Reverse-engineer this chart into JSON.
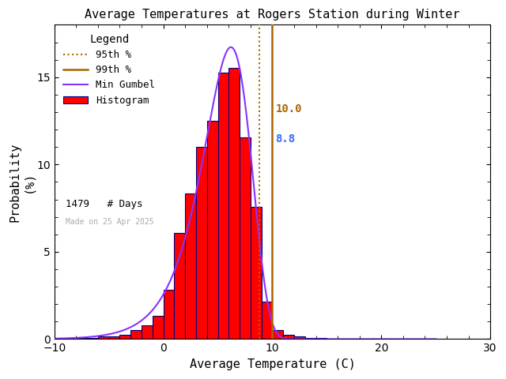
{
  "title": "Average Temperatures at Rogers Station during Winter",
  "xlabel": "Average Temperature (C)",
  "ylabel1": "Probability",
  "ylabel2": "(%)",
  "xlim": [
    -10,
    30
  ],
  "ylim": [
    0,
    18
  ],
  "xticks": [
    -10,
    0,
    10,
    20,
    30
  ],
  "yticks": [
    0,
    5,
    10,
    15
  ],
  "percentile_95": 8.8,
  "percentile_99": 10.0,
  "n_days": 1479,
  "made_on": "Made on 25 Apr 2025",
  "hist_color": "#ff0000",
  "hist_edge_color": "#000080",
  "gumbel_color": "#8833ff",
  "p95_color": "#aa6600",
  "p99_color": "#aa6600",
  "p95_label_color": "#3366ff",
  "p99_label_color": "#aa6600",
  "p95_label": "95th %",
  "p99_label": "99th %",
  "gumbel_label": "Min Gumbel",
  "hist_label": "Histogram",
  "days_label": "# Days",
  "legend_title": "Legend",
  "background_color": "#ffffff",
  "bin_edges": [
    -10,
    -9,
    -8,
    -7,
    -6,
    -5,
    -4,
    -3,
    -2,
    -1,
    0,
    1,
    2,
    3,
    4,
    5,
    6,
    7,
    8,
    9,
    10,
    11,
    12,
    13,
    14,
    15,
    16,
    17,
    18,
    19,
    20,
    21,
    22,
    23,
    24,
    25,
    26,
    27,
    28,
    29,
    30
  ],
  "bin_probs": [
    0.0,
    0.07,
    0.07,
    0.07,
    0.14,
    0.14,
    0.27,
    0.54,
    0.81,
    1.35,
    2.84,
    6.08,
    8.32,
    11.02,
    12.5,
    15.28,
    15.55,
    11.56,
    7.57,
    2.16,
    0.54,
    0.27,
    0.14,
    0.07,
    0.07,
    0.0,
    0.0,
    0.0,
    0.0,
    0.0,
    0.0,
    0.0,
    0.0,
    0.0,
    0.0,
    0.0,
    0.0,
    0.0,
    0.0,
    0.0
  ],
  "gumbel_mu": 6.2,
  "gumbel_beta": 2.2,
  "gumbel_scale": 100.0,
  "title_fontsize": 11,
  "label_fontsize": 11,
  "tick_fontsize": 10,
  "legend_fontsize": 9
}
